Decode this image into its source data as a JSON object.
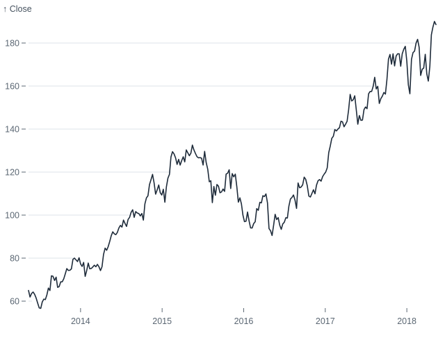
{
  "chart_data": {
    "type": "line",
    "title": "",
    "xlabel": "",
    "ylabel": "Close",
    "ylabel_display": "↑ Close",
    "legend": false,
    "grid": true,
    "grid_note": "horizontal gridlines only; each gridline stops where the series first rises above its value",
    "x_ticks": [
      2014,
      2015,
      2016,
      2017,
      2018
    ],
    "x_tick_labels": [
      "2014",
      "2015",
      "2016",
      "2017",
      "2018"
    ],
    "y_ticks": [
      60,
      80,
      100,
      120,
      140,
      160,
      180
    ],
    "x_domain": [
      2013.362,
      2018.357
    ],
    "y_axis_range": [
      60,
      180
    ],
    "colors": {
      "line": "#1e2b3a",
      "grid": "#dde3ea",
      "axis_text": "#5b6773",
      "axis_label": "#46525f",
      "background": "#ffffff"
    },
    "series": [
      {
        "name": "Close",
        "x_start": 2013.362,
        "x_end": 2018.357,
        "values": [
          64.96,
          61.89,
          63.59,
          64.25,
          63.16,
          61.43,
          59.07,
          56.87,
          56.65,
          59.63,
          60.93,
          60.71,
          62.86,
          66.08,
          64.92,
          71.76,
          71.57,
          69.6,
          71.17,
          66.41,
          66.77,
          68.96,
          69.0,
          70.4,
          72.7,
          75.14,
          74.29,
          74.37,
          74.99,
          79.44,
          80.01,
          79.2,
          78.43,
          80.15,
          77.28,
          76.13,
          78.01,
          71.51,
          74.24,
          77.71,
          75.04,
          75.18,
          75.89,
          76.7,
          75.99,
          77.1,
          76.0,
          74.23,
          75.97,
          81.71,
          84.65,
          83.65,
          85.36,
          87.73,
          90.43,
          92.22,
          91.28,
          90.91,
          91.98,
          94.03,
          95.22,
          94.43,
          97.67,
          96.13,
          94.74,
          97.98,
          98.97,
          101.32,
          102.5,
          98.97,
          101.66,
          100.96,
          100.75,
          99.62,
          100.73,
          97.67,
          105.22,
          108.0,
          109.01,
          114.18,
          116.47,
          118.93,
          115.0,
          109.73,
          111.78,
          113.99,
          110.38,
          109.33,
          112.01,
          105.99,
          113.1,
          117.16,
          118.93,
          127.08,
          129.5,
          128.46,
          126.6,
          123.59,
          125.9,
          123.25,
          125.32,
          127.1,
          124.75,
          130.28,
          128.95,
          127.62,
          128.77,
          132.54,
          130.28,
          128.65,
          127.17,
          126.6,
          126.75,
          126.44,
          123.28,
          129.62,
          124.5,
          121.3,
          115.52,
          115.96,
          105.76,
          113.29,
          109.27,
          114.21,
          113.45,
          110.38,
          110.78,
          112.12,
          111.04,
          119.08,
          119.5,
          121.06,
          112.34,
          119.3,
          117.81,
          119.03,
          113.18,
          106.03,
          108.03,
          105.26,
          99.96,
          96.96,
          97.13,
          101.42,
          97.34,
          94.02,
          93.99,
          96.04,
          96.91,
          103.01,
          102.26,
          105.92,
          105.67,
          108.99,
          108.66,
          109.85,
          105.68,
          93.74,
          92.72,
          90.52,
          95.22,
          100.35,
          97.92,
          98.83,
          95.33,
          93.4,
          95.89,
          96.68,
          98.78,
          98.66,
          104.21,
          107.48,
          108.18,
          109.36,
          106.94,
          103.13,
          114.92,
          112.71,
          113.05,
          114.06,
          117.63,
          116.6,
          113.72,
          108.84,
          108.43,
          110.06,
          111.79,
          109.9,
          113.95,
          115.97,
          116.52,
          115.82,
          117.91,
          119.04,
          120.0,
          121.95,
          129.08,
          132.12,
          135.72,
          136.66,
          139.78,
          139.14,
          139.99,
          140.64,
          143.66,
          143.34,
          141.05,
          142.27,
          143.65,
          148.96,
          156.1,
          153.06,
          153.61,
          155.45,
          148.98,
          142.27,
          146.28,
          144.02,
          144.18,
          149.04,
          150.27,
          149.5,
          156.39,
          157.48,
          157.5,
          159.86,
          164.05,
          158.63,
          159.88,
          151.89,
          154.12,
          155.3,
          156.99,
          156.25,
          163.05,
          172.5,
          174.67,
          170.15,
          174.97,
          169.37,
          173.97,
          175.01,
          175.01,
          169.23,
          175.0,
          177.09,
          178.46,
          171.51,
          160.5,
          156.41,
          172.43,
          175.55,
          176.21,
          179.98,
          181.72,
          178.02,
          164.94,
          167.78,
          168.38,
          174.73,
          165.72,
          162.32,
          169.1,
          183.83,
          187.36,
          190.04,
          188.59
        ]
      }
    ]
  }
}
